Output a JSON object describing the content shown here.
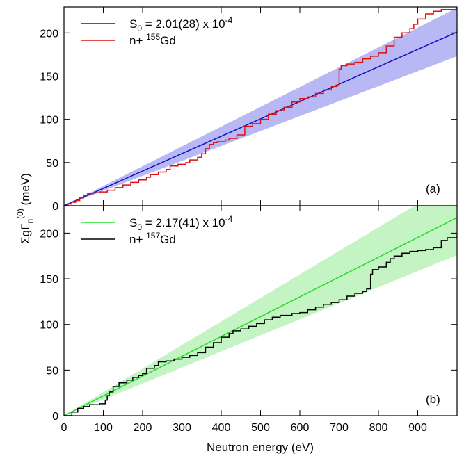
{
  "chart_data": [
    {
      "type": "line",
      "panel_label": "(a)",
      "xlim": [
        0,
        1000
      ],
      "ylim": [
        0,
        230
      ],
      "yticks": [
        0,
        50,
        100,
        150,
        200
      ],
      "xticks": [
        0,
        100,
        200,
        300,
        400,
        500,
        600,
        700,
        800,
        900
      ],
      "ylabel": "ΣgΓn(0) (meV)",
      "ylabel_parts": {
        "main": "ΣgΓ",
        "sub": "n",
        "sup": "(0)",
        "unit": " (meV)"
      },
      "legend_position": "top-left",
      "fit": {
        "name": "S0 = 2.01(28) x 10-4",
        "name_parts": {
          "pre": "S",
          "sub": "0",
          "mid": " = 2.01(28) x 10",
          "sup": "-4"
        },
        "color": "#1010c0",
        "band_color": "#b8b8f4",
        "slope": 0.201,
        "slope_low": 0.173,
        "slope_high": 0.229
      },
      "series": {
        "name": "n+ 155Gd",
        "name_parts": {
          "pre": "n+ ",
          "sup": "155",
          "post": "Gd"
        },
        "color": "#dd1111",
        "steps": [
          [
            0,
            0
          ],
          [
            10,
            2
          ],
          [
            20,
            4
          ],
          [
            30,
            6
          ],
          [
            40,
            9
          ],
          [
            50,
            12
          ],
          [
            60,
            14
          ],
          [
            75,
            15
          ],
          [
            90,
            16
          ],
          [
            110,
            18
          ],
          [
            130,
            21
          ],
          [
            150,
            24
          ],
          [
            170,
            27
          ],
          [
            190,
            30
          ],
          [
            210,
            33
          ],
          [
            220,
            36
          ],
          [
            240,
            39
          ],
          [
            260,
            42
          ],
          [
            270,
            46
          ],
          [
            290,
            48
          ],
          [
            310,
            50
          ],
          [
            320,
            53
          ],
          [
            340,
            56
          ],
          [
            350,
            60
          ],
          [
            360,
            66
          ],
          [
            370,
            71
          ],
          [
            380,
            73
          ],
          [
            390,
            74
          ],
          [
            410,
            76
          ],
          [
            420,
            78
          ],
          [
            440,
            82
          ],
          [
            460,
            92
          ],
          [
            480,
            95
          ],
          [
            500,
            100
          ],
          [
            520,
            106
          ],
          [
            540,
            110
          ],
          [
            560,
            114
          ],
          [
            580,
            120
          ],
          [
            600,
            124
          ],
          [
            620,
            126
          ],
          [
            640,
            130
          ],
          [
            660,
            134
          ],
          [
            680,
            138
          ],
          [
            695,
            140
          ],
          [
            700,
            158
          ],
          [
            705,
            162
          ],
          [
            720,
            164
          ],
          [
            740,
            166
          ],
          [
            760,
            170
          ],
          [
            780,
            173
          ],
          [
            800,
            177
          ],
          [
            820,
            185
          ],
          [
            840,
            195
          ],
          [
            860,
            200
          ],
          [
            880,
            205
          ],
          [
            890,
            210
          ],
          [
            900,
            216
          ],
          [
            920,
            222
          ],
          [
            940,
            225
          ],
          [
            960,
            227
          ],
          [
            1000,
            230
          ]
        ]
      }
    },
    {
      "type": "line",
      "panel_label": "(b)",
      "xlim": [
        0,
        1000
      ],
      "ylim": [
        0,
        230
      ],
      "yticks": [
        0,
        50,
        100,
        150,
        200
      ],
      "xticks": [
        0,
        100,
        200,
        300,
        400,
        500,
        600,
        700,
        800,
        900
      ],
      "xlabel": "Neutron energy (eV)",
      "legend_position": "top-left",
      "fit": {
        "name": "S0 = 2.17(41) x 10-4",
        "name_parts": {
          "pre": "S",
          "sub": "0",
          "mid": " = 2.17(41) x 10",
          "sup": "-4"
        },
        "color": "#22dd22",
        "band_color": "#c4f4c4",
        "slope": 0.217,
        "slope_low": 0.176,
        "slope_high": 0.258
      },
      "series": {
        "name": "n+ 157Gd",
        "name_parts": {
          "pre": "n+ ",
          "sup": "157",
          "post": "Gd"
        },
        "color": "#000000",
        "steps": [
          [
            0,
            0
          ],
          [
            20,
            4
          ],
          [
            35,
            8
          ],
          [
            50,
            10
          ],
          [
            65,
            12
          ],
          [
            90,
            13
          ],
          [
            105,
            17
          ],
          [
            110,
            22
          ],
          [
            115,
            26
          ],
          [
            125,
            32
          ],
          [
            140,
            36
          ],
          [
            160,
            39
          ],
          [
            175,
            42
          ],
          [
            190,
            44
          ],
          [
            200,
            46
          ],
          [
            210,
            52
          ],
          [
            230,
            55
          ],
          [
            240,
            59
          ],
          [
            260,
            60
          ],
          [
            280,
            62
          ],
          [
            300,
            64
          ],
          [
            320,
            66
          ],
          [
            340,
            69
          ],
          [
            360,
            75
          ],
          [
            380,
            80
          ],
          [
            400,
            86
          ],
          [
            420,
            90
          ],
          [
            430,
            93
          ],
          [
            450,
            95
          ],
          [
            470,
            98
          ],
          [
            490,
            101
          ],
          [
            510,
            105
          ],
          [
            530,
            108
          ],
          [
            550,
            110
          ],
          [
            580,
            112
          ],
          [
            600,
            113
          ],
          [
            620,
            116
          ],
          [
            640,
            119
          ],
          [
            660,
            122
          ],
          [
            680,
            124
          ],
          [
            700,
            127
          ],
          [
            720,
            131
          ],
          [
            740,
            134
          ],
          [
            760,
            136
          ],
          [
            770,
            139
          ],
          [
            780,
            155
          ],
          [
            785,
            160
          ],
          [
            800,
            163
          ],
          [
            820,
            168
          ],
          [
            830,
            172
          ],
          [
            840,
            175
          ],
          [
            860,
            178
          ],
          [
            880,
            180
          ],
          [
            900,
            181
          ],
          [
            920,
            182
          ],
          [
            940,
            184
          ],
          [
            960,
            192
          ],
          [
            975,
            195
          ],
          [
            1000,
            198
          ]
        ]
      }
    }
  ]
}
